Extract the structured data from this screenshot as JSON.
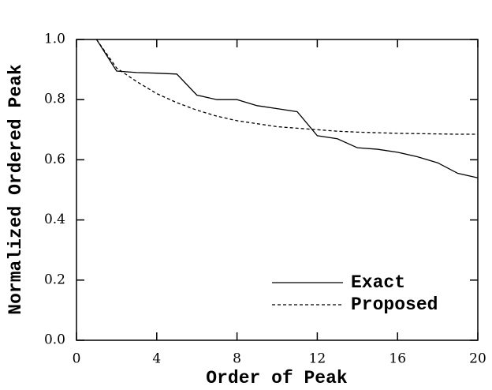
{
  "chart_data": {
    "type": "line",
    "xlabel": "Order of Peak",
    "ylabel": "Normalized Ordered Peak",
    "x": [
      1,
      2,
      3,
      4,
      5,
      6,
      7,
      8,
      9,
      10,
      11,
      12,
      13,
      14,
      15,
      16,
      17,
      18,
      19,
      20
    ],
    "series": [
      {
        "name": "Exact",
        "color": "#000000",
        "dash": "solid",
        "values": [
          1.0,
          0.895,
          0.89,
          0.888,
          0.885,
          0.815,
          0.8,
          0.8,
          0.78,
          0.77,
          0.76,
          0.68,
          0.67,
          0.64,
          0.635,
          0.625,
          0.61,
          0.59,
          0.555,
          0.54
        ]
      },
      {
        "name": "Proposed",
        "color": "#000000",
        "dash": "dashed",
        "values": [
          1.0,
          0.905,
          0.86,
          0.82,
          0.79,
          0.765,
          0.745,
          0.73,
          0.72,
          0.71,
          0.705,
          0.7,
          0.695,
          0.692,
          0.69,
          0.688,
          0.687,
          0.686,
          0.685,
          0.685
        ]
      }
    ],
    "xlim": [
      0,
      20
    ],
    "xticks": [
      0,
      4,
      8,
      12,
      16,
      20
    ],
    "ylim": [
      0,
      1.0
    ],
    "yticks": [
      {
        "value": 0,
        "label": "0.0"
      },
      {
        "value": 0.2,
        "label": "0.2"
      },
      {
        "value": 0.4,
        "label": "0.4"
      },
      {
        "value": 0.6,
        "label": "0.6"
      },
      {
        "value": 0.8,
        "label": "0.8"
      },
      {
        "value": 1.0,
        "label": "1.0"
      }
    ],
    "legend": "lower right",
    "grid": false
  }
}
